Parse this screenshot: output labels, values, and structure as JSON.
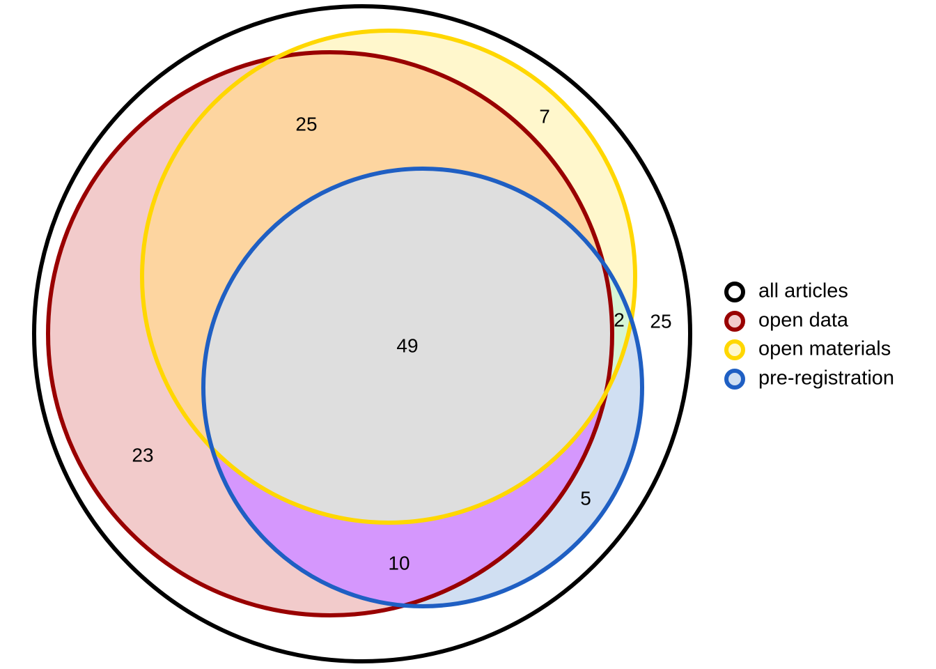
{
  "diagram": {
    "type": "venn",
    "sets": [
      {
        "id": "all",
        "name": "all articles",
        "stroke": "#000000",
        "fill": "#ffffff"
      },
      {
        "id": "data",
        "name": "open data",
        "stroke": "#990000",
        "fill": "#f2cbcb"
      },
      {
        "id": "materials",
        "name": "open materials",
        "stroke": "#ffd700",
        "fill": "#fff7cc"
      },
      {
        "id": "prereg",
        "name": "pre-registration",
        "stroke": "#1f5fc3",
        "fill": "#d0dff2"
      }
    ],
    "region_fills": {
      "data_materials": "#fdd5a0",
      "all_three": "#dedede",
      "data_prereg": "#d597fd",
      "materials_prereg": "#d6f5d6"
    },
    "regions": [
      {
        "id": "all-three",
        "sets": [
          "data",
          "materials",
          "prereg"
        ],
        "count": "49"
      },
      {
        "id": "data-materials-only",
        "sets": [
          "data",
          "materials"
        ],
        "count": "25"
      },
      {
        "id": "data-only",
        "sets": [
          "data"
        ],
        "count": "23"
      },
      {
        "id": "data-prereg-only",
        "sets": [
          "data",
          "prereg"
        ],
        "count": "10"
      },
      {
        "id": "materials-only",
        "sets": [
          "materials"
        ],
        "count": "7"
      },
      {
        "id": "materials-prereg-only",
        "sets": [
          "materials",
          "prereg"
        ],
        "count": "2"
      },
      {
        "id": "prereg-only",
        "sets": [
          "prereg"
        ],
        "count": "5"
      },
      {
        "id": "none",
        "sets": [
          "all"
        ],
        "count": "25"
      }
    ]
  }
}
